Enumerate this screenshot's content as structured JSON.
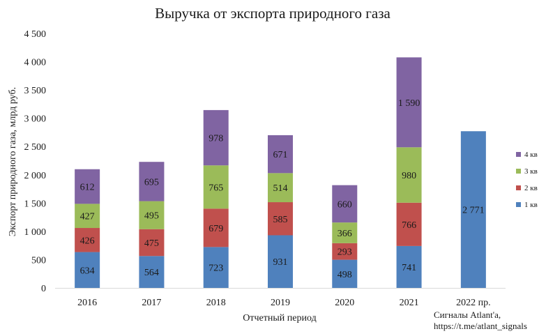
{
  "chart_data": {
    "type": "bar",
    "stacked": true,
    "title": "Выручка от экспорта природного газа",
    "xlabel": "Отчетный период",
    "ylabel": "Экспорт природного газа, млрд руб.",
    "categories": [
      "2016",
      "2017",
      "2018",
      "2019",
      "2020",
      "2021",
      "2022 пр."
    ],
    "ylim": [
      0,
      4500
    ],
    "yticks": [
      {
        "value": 0,
        "label": "0"
      },
      {
        "value": 500,
        "label": "500"
      },
      {
        "value": 1000,
        "label": "1 000"
      },
      {
        "value": 1500,
        "label": "1 500"
      },
      {
        "value": 2000,
        "label": "2 000"
      },
      {
        "value": 2500,
        "label": "2 500"
      },
      {
        "value": 3000,
        "label": "3 000"
      },
      {
        "value": 3500,
        "label": "3 500"
      },
      {
        "value": 4000,
        "label": "4 000"
      },
      {
        "value": 4500,
        "label": "4 500"
      }
    ],
    "series": [
      {
        "name": "1 кв",
        "color": "#4f81bd",
        "values": [
          634,
          564,
          723,
          931,
          498,
          741,
          2771
        ],
        "labels": [
          "634",
          "564",
          "723",
          "931",
          "498",
          "741",
          "2 771"
        ]
      },
      {
        "name": "2 кв",
        "color": "#c0504d",
        "values": [
          426,
          475,
          679,
          585,
          293,
          766,
          null
        ],
        "labels": [
          "426",
          "475",
          "679",
          "585",
          "293",
          "766",
          ""
        ]
      },
      {
        "name": "3 кв",
        "color": "#9bbb59",
        "values": [
          427,
          495,
          765,
          514,
          366,
          980,
          null
        ],
        "labels": [
          "427",
          "495",
          "765",
          "514",
          "366",
          "980",
          ""
        ]
      },
      {
        "name": "4 кв",
        "color": "#8064a2",
        "values": [
          612,
          695,
          978,
          671,
          660,
          1590,
          null
        ],
        "labels": [
          "612",
          "695",
          "978",
          "671",
          "660",
          "1 590",
          ""
        ]
      }
    ],
    "legend_position": "right",
    "grid": false
  },
  "source_note": {
    "line1": "Сигналы Atlant'a,",
    "line2": "https://t.me/atlant_signals"
  }
}
